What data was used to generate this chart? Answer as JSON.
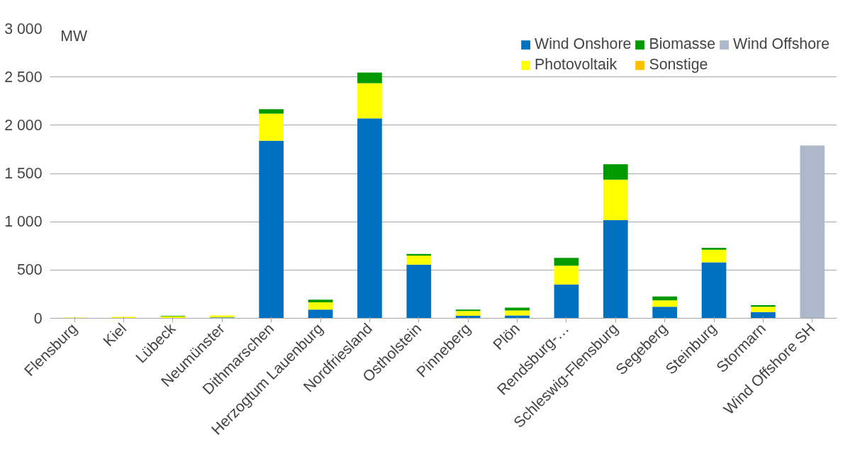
{
  "chart_data": {
    "type": "bar",
    "stacked": true,
    "ylabel": "MW",
    "categories": [
      "Flensburg",
      "Kiel",
      "Lübeck",
      "Neumünster",
      "Dithmarschen",
      "Herzogtum Lauenburg",
      "Nordfriesland",
      "Ostholstein",
      "Pinneberg",
      "Plön",
      "Rendsburg-…",
      "Schleswig-Flensburg",
      "Segeberg",
      "Steinburg",
      "Stormarn",
      "Wind Offshore SH"
    ],
    "series": [
      {
        "name": "Wind Onshore",
        "color": "#0070c0",
        "values": [
          0,
          0,
          0,
          10,
          1840,
          90,
          2070,
          555,
          25,
          30,
          350,
          1015,
          120,
          580,
          65,
          null
        ]
      },
      {
        "name": "Photovoltaik",
        "color": "#ffff00",
        "values": [
          8,
          15,
          20,
          20,
          280,
          75,
          365,
          95,
          50,
          50,
          195,
          420,
          65,
          130,
          55,
          null
        ]
      },
      {
        "name": "Biomasse",
        "color": "#009900",
        "values": [
          0,
          0,
          5,
          null,
          45,
          27,
          110,
          15,
          15,
          30,
          80,
          160,
          40,
          20,
          15,
          null
        ]
      },
      {
        "name": "Sonstige",
        "color": "#ffc000",
        "values": [
          0,
          0,
          0,
          0,
          0,
          0,
          0,
          0,
          0,
          0,
          0,
          0,
          0,
          0,
          0,
          null
        ]
      },
      {
        "name": "Wind Offshore",
        "color": "#adb9ca",
        "values": [
          null,
          null,
          null,
          null,
          null,
          null,
          null,
          null,
          null,
          null,
          null,
          null,
          null,
          null,
          null,
          1790
        ]
      }
    ],
    "ylim": [
      0,
      3000
    ],
    "yticks": [
      {
        "value": 0,
        "label": "0"
      },
      {
        "value": 500,
        "label": "500"
      },
      {
        "value": 1000,
        "label": "1 000"
      },
      {
        "value": 1500,
        "label": "1 500"
      },
      {
        "value": 2000,
        "label": "2 000"
      },
      {
        "value": 2500,
        "label": "2 500"
      },
      {
        "value": 3000,
        "label": "3 000"
      }
    ],
    "grid": "y",
    "legend": "top right"
  }
}
